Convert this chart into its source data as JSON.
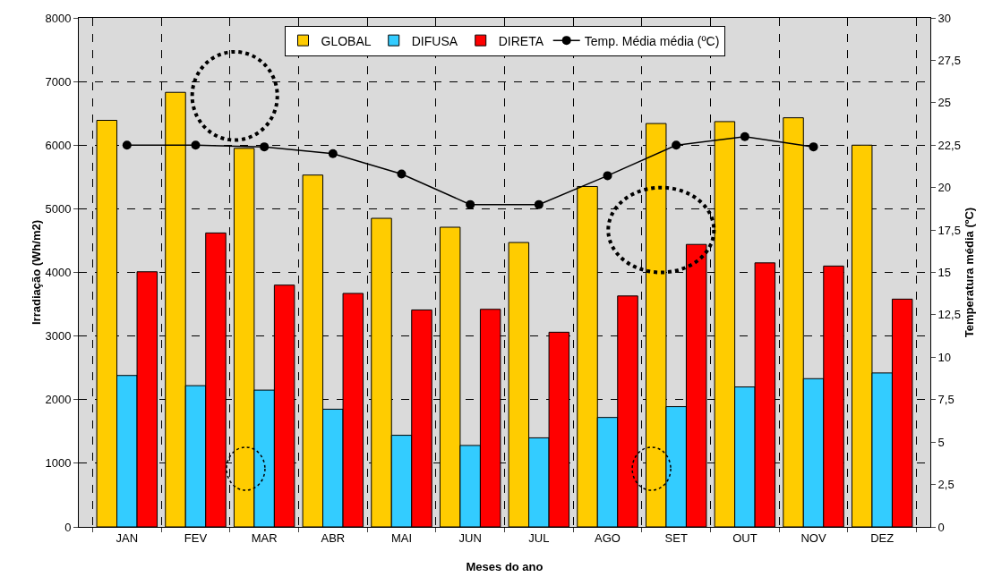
{
  "chart_data": {
    "type": "bar",
    "xlabel": "Meses do ano",
    "ylabel": "Irradiação (Wh/m2)",
    "y2label": "Temperatura média (ºC)",
    "categories": [
      "JAN",
      "FEV",
      "MAR",
      "ABR",
      "MAI",
      "JUN",
      "JUL",
      "AGO",
      "SET",
      "OUT",
      "NOV",
      "DEZ"
    ],
    "series": [
      {
        "name": "GLOBAL",
        "color": "#ffcc00",
        "values": [
          6390,
          6830,
          5950,
          5530,
          4850,
          4710,
          4470,
          5350,
          6340,
          6370,
          6430,
          6000
        ]
      },
      {
        "name": "DIFUSA",
        "color": "#33ccff",
        "values": [
          2380,
          2220,
          2150,
          1850,
          1440,
          1280,
          1400,
          1720,
          1890,
          2200,
          2330,
          2420
        ]
      },
      {
        "name": "DIRETA",
        "color": "#ff0000",
        "values": [
          4010,
          4620,
          3800,
          3670,
          3410,
          3420,
          3060,
          3630,
          4440,
          4150,
          4100,
          3580
        ]
      },
      {
        "name": "Temp. Média média (ºC)",
        "type": "line",
        "axis": "y2",
        "color": "#000000",
        "values": [
          22.5,
          22.5,
          22.4,
          22.0,
          20.8,
          19.0,
          19.0,
          20.7,
          22.5,
          23.0,
          22.4,
          null
        ]
      }
    ],
    "ylim": [
      0,
      8000
    ],
    "yticks": [
      0,
      1000,
      2000,
      3000,
      4000,
      5000,
      6000,
      7000,
      8000
    ],
    "y2lim": [
      0,
      30
    ],
    "y2ticks": [
      0,
      {
        "value": 2.5,
        "label": "2,5"
      },
      5,
      {
        "value": 7.5,
        "label": "7,5"
      },
      10,
      {
        "value": 12.5,
        "label": "12,5"
      },
      15,
      {
        "value": 17.5,
        "label": "17,5"
      },
      20,
      {
        "value": 22.5,
        "label": "22,5"
      },
      25,
      {
        "value": 27.5,
        "label": "27,5"
      },
      30
    ],
    "grid": true,
    "legend": "top",
    "marker": "circle",
    "line_style": "solid"
  }
}
